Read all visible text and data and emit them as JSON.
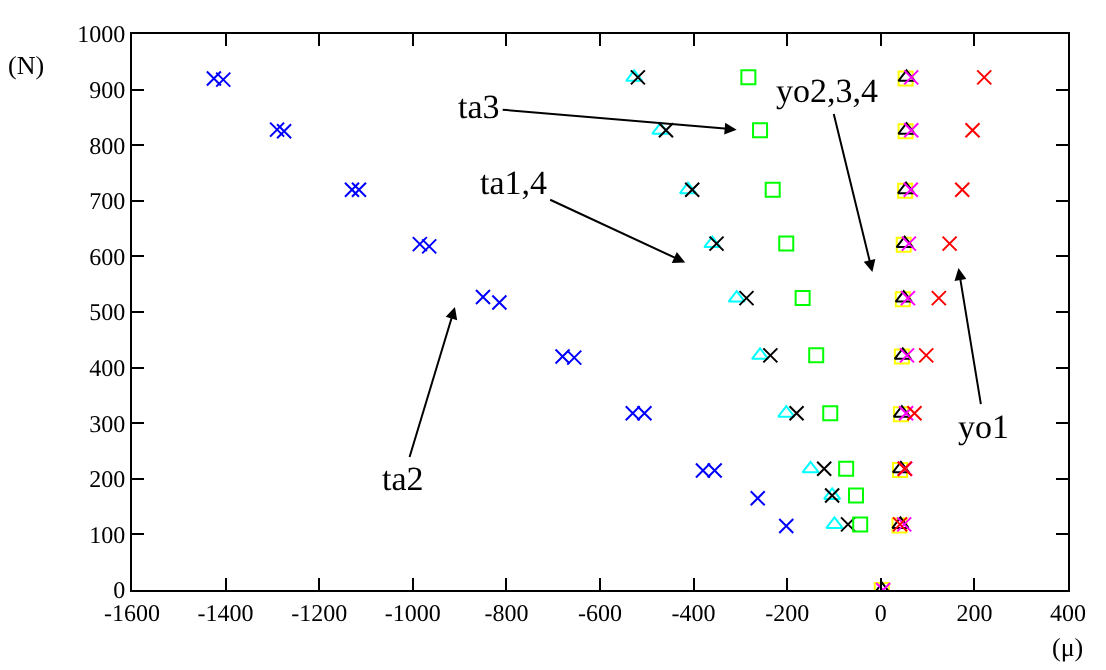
{
  "chart_data": {
    "type": "scatter",
    "xlabel": "(μ)",
    "ylabel": "(N)",
    "xlim": [
      -1600,
      400
    ],
    "xticks": [
      -1600,
      -1400,
      -1200,
      -1000,
      -800,
      -600,
      -400,
      -200,
      0,
      200,
      400
    ],
    "ylim": [
      0,
      1000
    ],
    "yticks": [
      0,
      100,
      200,
      300,
      400,
      500,
      600,
      700,
      800,
      900,
      1000
    ],
    "series": [
      {
        "color": "#0000ff",
        "marker": "cross",
        "x": [
          -1425,
          -1405,
          -1290,
          -1275,
          -1130,
          -1115,
          -985,
          -965,
          -850,
          -815,
          -680,
          -655,
          -530,
          -505,
          -380,
          -355,
          -263,
          -202
        ],
        "values": [
          920,
          918,
          828,
          825,
          720,
          720,
          622,
          618,
          527,
          517,
          420,
          418,
          318,
          318,
          215,
          215,
          165,
          115
        ]
      },
      {
        "color": "#00ffff",
        "marker": "triangle",
        "x": [
          -527,
          -471,
          -412,
          -360,
          -308,
          -258,
          -202,
          -150,
          -104,
          -99
        ],
        "values": [
          922,
          827,
          720,
          623,
          525,
          422,
          318,
          218,
          170,
          118
        ]
      },
      {
        "color": "#000000",
        "marker": "cross",
        "x": [
          -519,
          -459,
          -403,
          -351,
          -287,
          -236,
          -180,
          -121,
          -104,
          -70
        ],
        "values": [
          922,
          827,
          720,
          623,
          525,
          422,
          318,
          218,
          170,
          118
        ]
      },
      {
        "color": "#00ff00",
        "marker": "square",
        "x": [
          -283,
          -258,
          -231,
          -202,
          -167,
          -138,
          -108,
          -74,
          -53,
          -44
        ],
        "values": [
          922,
          827,
          720,
          623,
          525,
          422,
          318,
          218,
          170,
          118
        ]
      },
      {
        "color": "#ffff00",
        "marker": "square",
        "x": [
          53,
          53,
          52,
          49,
          47,
          45,
          43,
          41,
          40,
          2
        ],
        "values": [
          920,
          825,
          718,
          621,
          523,
          420,
          316,
          216,
          116,
          0
        ]
      },
      {
        "color": "#000000",
        "marker": "triangle",
        "x": [
          55,
          55,
          54,
          51,
          49,
          47,
          45,
          43,
          42,
          3
        ],
        "values": [
          922,
          827,
          720,
          623,
          525,
          422,
          318,
          218,
          118,
          0
        ]
      },
      {
        "color": "#ff00ff",
        "marker": "cross",
        "x": [
          65,
          65,
          64,
          60,
          58,
          56,
          54,
          52,
          50,
          5
        ],
        "values": [
          922,
          827,
          720,
          623,
          525,
          422,
          318,
          218,
          118,
          0
        ]
      },
      {
        "color": "#ff0000",
        "marker": "cross",
        "x": [
          221,
          196,
          174,
          147,
          124,
          97,
          72,
          51,
          41
        ],
        "values": [
          922,
          827,
          720,
          623,
          525,
          422,
          318,
          218,
          118
        ]
      }
    ],
    "annotations": [
      "ta3",
      "ta1,4",
      "ta2",
      "yo2,3,4",
      "yo1"
    ]
  }
}
